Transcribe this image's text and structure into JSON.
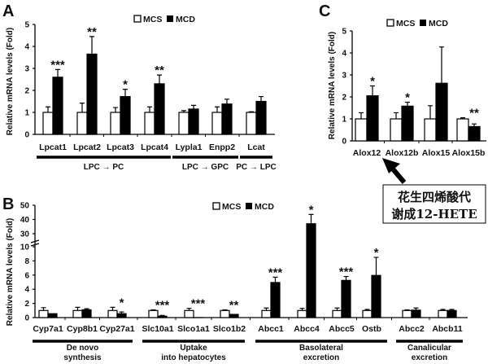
{
  "colors": {
    "MCS": "#ffffff",
    "MCD": "#000000",
    "axis": "#000000"
  },
  "annotation": {
    "line1": "花生四烯酸代",
    "line2": "谢成12-HETE",
    "arrow_icon": "arrow-up-left-icon"
  },
  "chart_data": [
    {
      "panel_label": "A",
      "type": "bar",
      "ylabel": "Relative mRNA levels (Fold)",
      "ylim": [
        0,
        5
      ],
      "yticks": [
        "0",
        "1",
        "2",
        "3",
        "4",
        "5"
      ],
      "legend": [
        "MCS",
        "MCD"
      ],
      "legend_position": "top",
      "categories": [
        "Lpcat1",
        "Lpcat2",
        "Lpcat3",
        "Lpcat4",
        "Lypla1",
        "Enpp2",
        "Lcat"
      ],
      "series": [
        {
          "name": "MCS",
          "values": [
            1,
            1,
            1,
            1,
            1,
            1,
            1
          ],
          "errors": [
            0.25,
            0.42,
            0.22,
            0.25,
            0.08,
            0.25,
            0.03
          ]
        },
        {
          "name": "MCD",
          "values": [
            2.6,
            3.65,
            1.72,
            2.3,
            1.15,
            1.38,
            1.5
          ],
          "errors": [
            0.35,
            0.8,
            0.33,
            0.4,
            0.17,
            0.22,
            0.22
          ]
        }
      ],
      "significance": [
        "***",
        "**",
        "*",
        "**",
        "",
        "",
        ""
      ],
      "groups": [
        {
          "label": [
            "LPC → PC"
          ],
          "start": 0,
          "end": 3
        },
        {
          "label": [
            "LPC → GPC"
          ],
          "start": 4,
          "end": 5
        },
        {
          "label": [
            "PC → LPC"
          ],
          "start": 6,
          "end": 6
        }
      ]
    },
    {
      "panel_label": "B",
      "type": "bar",
      "ylabel": "Relative mRNA levels (Fold)",
      "ylim": [
        0,
        50
      ],
      "axis_break": [
        10,
        30
      ],
      "yticks": [
        "0",
        "2",
        "4",
        "6",
        "8",
        "10",
        "30",
        "40",
        "50"
      ],
      "legend": [
        "MCS",
        "MCD"
      ],
      "legend_position": "top",
      "categories": [
        "Cyp7a1",
        "Cyp8b1",
        "Cyp27a1",
        "Slc10a1",
        "Slco1a1",
        "Slco1b2",
        "Abcc1",
        "Abcc4",
        "Abcc5",
        "Ostb",
        "Abcc2",
        "Abcb11"
      ],
      "series": [
        {
          "name": "MCS",
          "values": [
            1,
            1,
            1,
            1,
            1,
            1,
            1,
            1,
            1,
            1,
            1,
            1
          ],
          "errors": [
            0.4,
            0.45,
            0.45,
            0.1,
            0.3,
            0.1,
            0.35,
            0.3,
            0.35,
            0.15,
            0.1,
            0.15
          ]
        },
        {
          "name": "MCD",
          "values": [
            0.55,
            1.1,
            0.55,
            0.2,
            0,
            0.45,
            4.95,
            37,
            5.25,
            5.95,
            1.05,
            1.0
          ],
          "errors": [
            0,
            0.15,
            0.25,
            0.1,
            0,
            0,
            0.75,
            6.5,
            0.55,
            2.55,
            0.3,
            0.15
          ]
        }
      ],
      "significance": [
        "",
        "",
        "*",
        "***",
        "***",
        "**",
        "***",
        "*",
        "***",
        "*",
        "",
        ""
      ],
      "groups": [
        {
          "label": [
            "De novo",
            "synthesis"
          ],
          "start": 0,
          "end": 2
        },
        {
          "label": [
            "Uptake",
            "into hepatocytes"
          ],
          "start": 3,
          "end": 5
        },
        {
          "label": [
            "Basolateral",
            "excretion"
          ],
          "start": 6,
          "end": 9
        },
        {
          "label": [
            "Canalicular",
            "excretion"
          ],
          "start": 10,
          "end": 11
        }
      ]
    },
    {
      "panel_label": "C",
      "type": "bar",
      "ylabel": "Relative mRNA levels (Fold)",
      "ylim": [
        0,
        5
      ],
      "yticks": [
        "0",
        "1",
        "2",
        "3",
        "4",
        "5"
      ],
      "legend": [
        "MCS",
        "MCD"
      ],
      "legend_position": "top",
      "categories": [
        "Alox12",
        "Alox12b",
        "Alox15",
        "Alox15b"
      ],
      "series": [
        {
          "name": "MCS",
          "values": [
            1,
            1,
            1,
            1
          ],
          "errors": [
            0.28,
            0.28,
            0.6,
            0.05
          ]
        },
        {
          "name": "MCD",
          "values": [
            2.05,
            1.58,
            2.62,
            0.65
          ],
          "errors": [
            0.45,
            0.18,
            1.65,
            0.12
          ]
        }
      ],
      "significance": [
        "*",
        "*",
        "",
        "**"
      ],
      "groups": []
    }
  ]
}
